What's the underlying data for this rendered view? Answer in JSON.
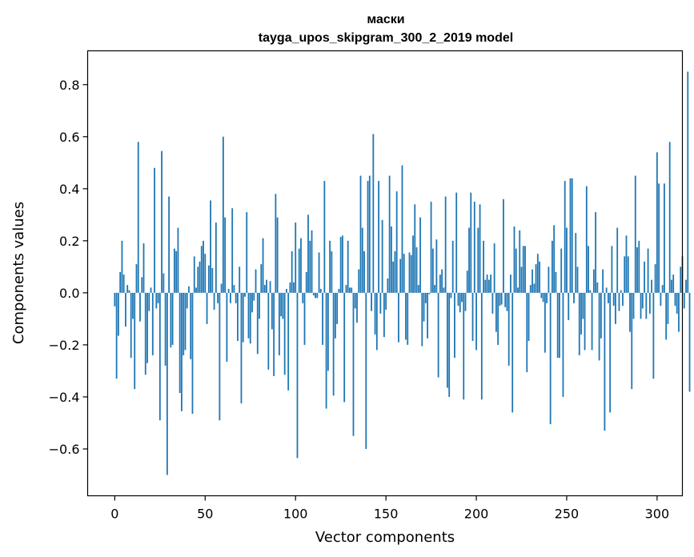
{
  "chart_data": {
    "type": "bar",
    "title": "маски",
    "subtitle": "tayga_upos_skipgram_300_2_2019 model",
    "xlabel": "Vector components",
    "ylabel": "Components values",
    "xlim": [
      -15,
      314
    ],
    "ylim": [
      -0.78,
      0.93
    ],
    "xticks": [
      0,
      50,
      100,
      150,
      200,
      250,
      300
    ],
    "yticks": [
      -0.6,
      -0.4,
      -0.2,
      0.0,
      0.2,
      0.4,
      0.6,
      0.8
    ],
    "xtick_labels": [
      "0",
      "50",
      "100",
      "150",
      "200",
      "250",
      "300"
    ],
    "ytick_labels": [
      "−0.6",
      "−0.4",
      "−0.2",
      "0.0",
      "0.2",
      "0.4",
      "0.6",
      "0.8"
    ],
    "bar_color": "#1f77b4",
    "grid": false,
    "values": [
      -0.052,
      -0.33,
      -0.165,
      0.08,
      0.2,
      0.07,
      -0.13,
      0.03,
      0.01,
      -0.25,
      -0.1,
      -0.37,
      0.11,
      0.58,
      -0.11,
      0.06,
      0.19,
      -0.315,
      -0.27,
      -0.07,
      0.02,
      -0.24,
      0.48,
      -0.06,
      -0.04,
      -0.49,
      0.545,
      0.075,
      -0.28,
      -0.7,
      0.37,
      -0.21,
      -0.2,
      0.17,
      0.16,
      0.25,
      -0.385,
      -0.455,
      -0.24,
      -0.22,
      -0.06,
      0.025,
      -0.255,
      -0.465,
      0.14,
      0.02,
      0.1,
      0.12,
      0.18,
      0.2,
      0.15,
      -0.12,
      0.105,
      0.355,
      0.095,
      -0.065,
      0.27,
      -0.04,
      -0.49,
      0.035,
      0.6,
      0.29,
      -0.265,
      0.015,
      -0.04,
      0.325,
      0.03,
      -0.04,
      -0.185,
      0.1,
      -0.425,
      -0.19,
      -0.015,
      0.31,
      -0.175,
      -0.195,
      -0.075,
      -0.03,
      0.09,
      -0.235,
      -0.1,
      0.11,
      0.21,
      0.03,
      0.05,
      -0.295,
      0.045,
      -0.14,
      -0.32,
      0.38,
      0.29,
      -0.24,
      -0.09,
      -0.1,
      -0.315,
      0.015,
      -0.375,
      0.04,
      0.16,
      0.04,
      0.27,
      -0.635,
      0.17,
      0.21,
      -0.04,
      -0.2,
      0.08,
      0.3,
      0.2,
      0.24,
      -0.01,
      -0.02,
      -0.02,
      0.155,
      0.015,
      -0.2,
      0.43,
      -0.445,
      -0.3,
      0.2,
      0.16,
      -0.395,
      -0.175,
      -0.12,
      0.015,
      0.215,
      0.22,
      -0.42,
      0.03,
      0.2,
      0.02,
      0.02,
      -0.55,
      -0.06,
      -0.115,
      0.09,
      0.45,
      0.25,
      0.16,
      -0.6,
      0.43,
      0.45,
      -0.07,
      0.61,
      -0.16,
      -0.22,
      0.43,
      -0.08,
      0.28,
      -0.17,
      -0.065,
      0.055,
      0.45,
      0.255,
      0.12,
      0.16,
      0.39,
      -0.19,
      0.13,
      0.49,
      0.15,
      -0.18,
      -0.2,
      0.155,
      0.145,
      0.22,
      0.34,
      0.175,
      0.03,
      0.29,
      -0.205,
      -0.11,
      -0.04,
      -0.175,
      -0.005,
      0.35,
      0.17,
      0.03,
      0.205,
      -0.325,
      0.07,
      0.09,
      0.02,
      0.37,
      -0.365,
      -0.4,
      -0.02,
      0.2,
      -0.25,
      0.385,
      -0.05,
      -0.075,
      -0.035,
      -0.41,
      -0.07,
      0.085,
      0.25,
      0.385,
      -0.185,
      0.35,
      -0.22,
      0.25,
      0.34,
      -0.41,
      0.2,
      0.05,
      0.07,
      0.05,
      0.07,
      -0.08,
      0.19,
      -0.15,
      -0.2,
      -0.05,
      -0.045,
      0.36,
      -0.055,
      -0.07,
      -0.28,
      0.07,
      -0.46,
      0.255,
      0.17,
      0.02,
      0.24,
      0.1,
      0.18,
      0.18,
      -0.305,
      -0.185,
      0.03,
      0.09,
      0.035,
      0.11,
      0.15,
      0.12,
      -0.02,
      -0.035,
      -0.23,
      -0.04,
      0.1,
      -0.505,
      0.2,
      0.26,
      0.08,
      -0.25,
      -0.25,
      0.17,
      -0.4,
      0.43,
      0.25,
      -0.105,
      0.44,
      0.44,
      -0.04,
      0.23,
      0.1,
      -0.24,
      -0.16,
      -0.1,
      -0.22,
      0.41,
      0.18,
      0.01,
      -0.22,
      0.09,
      0.31,
      0.04,
      -0.26,
      -0.175,
      0.09,
      -0.53,
      0.02,
      -0.04,
      -0.46,
      0.18,
      -0.05,
      -0.12,
      0.25,
      -0.07,
      0.01,
      -0.05,
      0.14,
      0.22,
      0.14,
      -0.15,
      -0.37,
      -0.1,
      0.45,
      0.175,
      0.2,
      -0.1,
      -0.06,
      0.12,
      -0.1,
      0.17,
      -0.08,
      0.05,
      -0.33,
      0.11,
      0.54,
      0.42,
      -0.05,
      0.03,
      0.42,
      -0.18,
      -0.12,
      0.58,
      0.05,
      0.07,
      -0.05,
      -0.08,
      -0.15,
      0.1,
      0.14,
      -0.06,
      0.05,
      0.85,
      -0.38
    ]
  }
}
